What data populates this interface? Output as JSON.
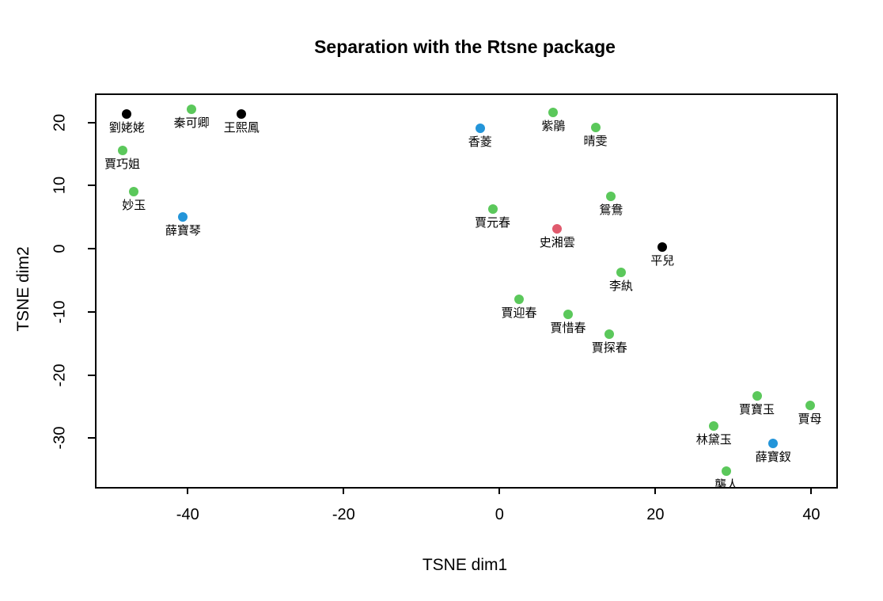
{
  "title": "Separation with the Rtsne package",
  "chart_data": {
    "type": "scatter",
    "title": "Separation with the Rtsne package",
    "xlabel": "TSNE dim1",
    "ylabel": "TSNE dim2",
    "xlim": [
      -51.9,
      43.0
    ],
    "ylim": [
      -37.5,
      24.6
    ],
    "x_ticks": [
      -40,
      -20,
      0,
      20,
      40
    ],
    "y_ticks": [
      -30,
      -20,
      -10,
      0,
      10,
      20
    ],
    "grid": false,
    "legend": "none",
    "point_label_position": "below",
    "palette": {
      "black": "#000000",
      "green": "#5bc85b",
      "blue": "#2395d9",
      "red": "#e05a6d"
    },
    "points": [
      {
        "label": "劉姥姥",
        "x": -48.0,
        "y": 21.6,
        "color": "black"
      },
      {
        "label": "秦可卿",
        "x": -39.7,
        "y": 22.4,
        "color": "green"
      },
      {
        "label": "王熙鳳",
        "x": -33.3,
        "y": 21.6,
        "color": "black"
      },
      {
        "label": "賈巧姐",
        "x": -48.6,
        "y": 15.8,
        "color": "green"
      },
      {
        "label": "妙玉",
        "x": -47.1,
        "y": 9.3,
        "color": "green"
      },
      {
        "label": "薛寶琴",
        "x": -40.8,
        "y": 5.3,
        "color": "blue"
      },
      {
        "label": "香菱",
        "x": -2.7,
        "y": 19.3,
        "color": "blue"
      },
      {
        "label": "紫鵑",
        "x": 6.7,
        "y": 21.9,
        "color": "green"
      },
      {
        "label": "晴雯",
        "x": 12.1,
        "y": 19.4,
        "color": "green"
      },
      {
        "label": "賈元春",
        "x": -1.1,
        "y": 6.5,
        "color": "green"
      },
      {
        "label": "史湘雲",
        "x": 7.2,
        "y": 3.4,
        "color": "red"
      },
      {
        "label": "鴛鴦",
        "x": 14.1,
        "y": 8.5,
        "color": "green"
      },
      {
        "label": "平兒",
        "x": 20.7,
        "y": 0.5,
        "color": "black"
      },
      {
        "label": "李紈",
        "x": 15.4,
        "y": -3.5,
        "color": "green"
      },
      {
        "label": "賈迎春",
        "x": 2.3,
        "y": -7.8,
        "color": "green"
      },
      {
        "label": "賈惜春",
        "x": 8.6,
        "y": -10.2,
        "color": "green"
      },
      {
        "label": "賈探春",
        "x": 13.9,
        "y": -13.3,
        "color": "green"
      },
      {
        "label": "賈寶玉",
        "x": 32.8,
        "y": -23.1,
        "color": "green"
      },
      {
        "label": "賈母",
        "x": 39.6,
        "y": -24.6,
        "color": "green"
      },
      {
        "label": "林黛玉",
        "x": 27.3,
        "y": -27.9,
        "color": "green"
      },
      {
        "label": "薛寶釵",
        "x": 34.9,
        "y": -30.6,
        "color": "blue"
      },
      {
        "label": "襲人",
        "x": 28.9,
        "y": -35.0,
        "color": "green"
      }
    ]
  }
}
